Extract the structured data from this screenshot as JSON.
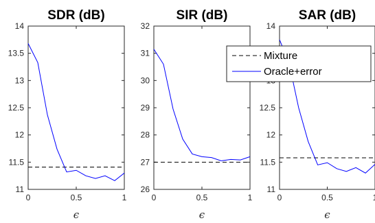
{
  "chart_data": [
    {
      "type": "line",
      "title": "SDR (dB)",
      "xlabel": "ϵ",
      "xlim": [
        0,
        1
      ],
      "ylim": [
        11,
        14
      ],
      "xticks": [
        0,
        0.5,
        1
      ],
      "xtick_labels": [
        "0",
        "0.5",
        "1"
      ],
      "yticks": [
        11,
        11.5,
        12,
        12.5,
        13,
        13.5,
        14
      ],
      "ytick_labels": [
        "11",
        "11.5",
        "12",
        "12.5",
        "13",
        "13.5",
        "14"
      ],
      "series": [
        {
          "name": "Mixture",
          "style": "dashed",
          "color": "#000000",
          "x": [
            0,
            1
          ],
          "y": [
            11.41,
            11.41
          ]
        },
        {
          "name": "Oracle+error",
          "style": "solid",
          "color": "#0000ff",
          "x": [
            0,
            0.1,
            0.2,
            0.3,
            0.4,
            0.5,
            0.6,
            0.7,
            0.8,
            0.9,
            1.0
          ],
          "y": [
            13.68,
            13.33,
            12.37,
            11.74,
            11.32,
            11.35,
            11.25,
            11.2,
            11.25,
            11.16,
            11.3
          ]
        }
      ]
    },
    {
      "type": "line",
      "title": "SIR (dB)",
      "xlabel": "ϵ",
      "xlim": [
        0,
        1
      ],
      "ylim": [
        26,
        32
      ],
      "xticks": [
        0,
        0.5,
        1
      ],
      "xtick_labels": [
        "0",
        "0.5",
        "1"
      ],
      "yticks": [
        26,
        27,
        28,
        29,
        30,
        31,
        32
      ],
      "ytick_labels": [
        "26",
        "27",
        "28",
        "29",
        "30",
        "31",
        "32"
      ],
      "series": [
        {
          "name": "Mixture",
          "style": "dashed",
          "color": "#000000",
          "x": [
            0,
            1
          ],
          "y": [
            27.0,
            27.0
          ]
        },
        {
          "name": "Oracle+error",
          "style": "solid",
          "color": "#0000ff",
          "x": [
            0,
            0.1,
            0.2,
            0.3,
            0.4,
            0.5,
            0.6,
            0.7,
            0.8,
            0.9,
            1.0
          ],
          "y": [
            31.15,
            30.6,
            28.95,
            27.85,
            27.3,
            27.2,
            27.17,
            27.05,
            27.1,
            27.08,
            27.2
          ]
        }
      ]
    },
    {
      "type": "line",
      "title": "SAR (dB)",
      "xlabel": "ϵ",
      "xlim": [
        0,
        1
      ],
      "ylim": [
        11,
        14
      ],
      "xticks": [
        0,
        0.5,
        1
      ],
      "xtick_labels": [
        "0",
        "0.5",
        "1"
      ],
      "yticks": [
        11,
        11.5,
        12,
        12.5,
        13,
        13.5,
        14
      ],
      "ytick_labels": [
        "11",
        "11.5",
        "12",
        "12.5",
        "13",
        "13.5",
        "14"
      ],
      "legend": {
        "position": "top-right",
        "entries": [
          "Mixture",
          "Oracle+error"
        ]
      },
      "series": [
        {
          "name": "Mixture",
          "style": "dashed",
          "color": "#000000",
          "x": [
            0,
            1
          ],
          "y": [
            11.58,
            11.58
          ]
        },
        {
          "name": "Oracle+error",
          "style": "solid",
          "color": "#0000ff",
          "x": [
            0,
            0.1,
            0.2,
            0.3,
            0.4,
            0.5,
            0.6,
            0.7,
            0.8,
            0.9,
            1.0
          ],
          "y": [
            13.75,
            13.32,
            12.5,
            11.88,
            11.45,
            11.49,
            11.38,
            11.33,
            11.4,
            11.3,
            11.46
          ]
        }
      ]
    }
  ]
}
